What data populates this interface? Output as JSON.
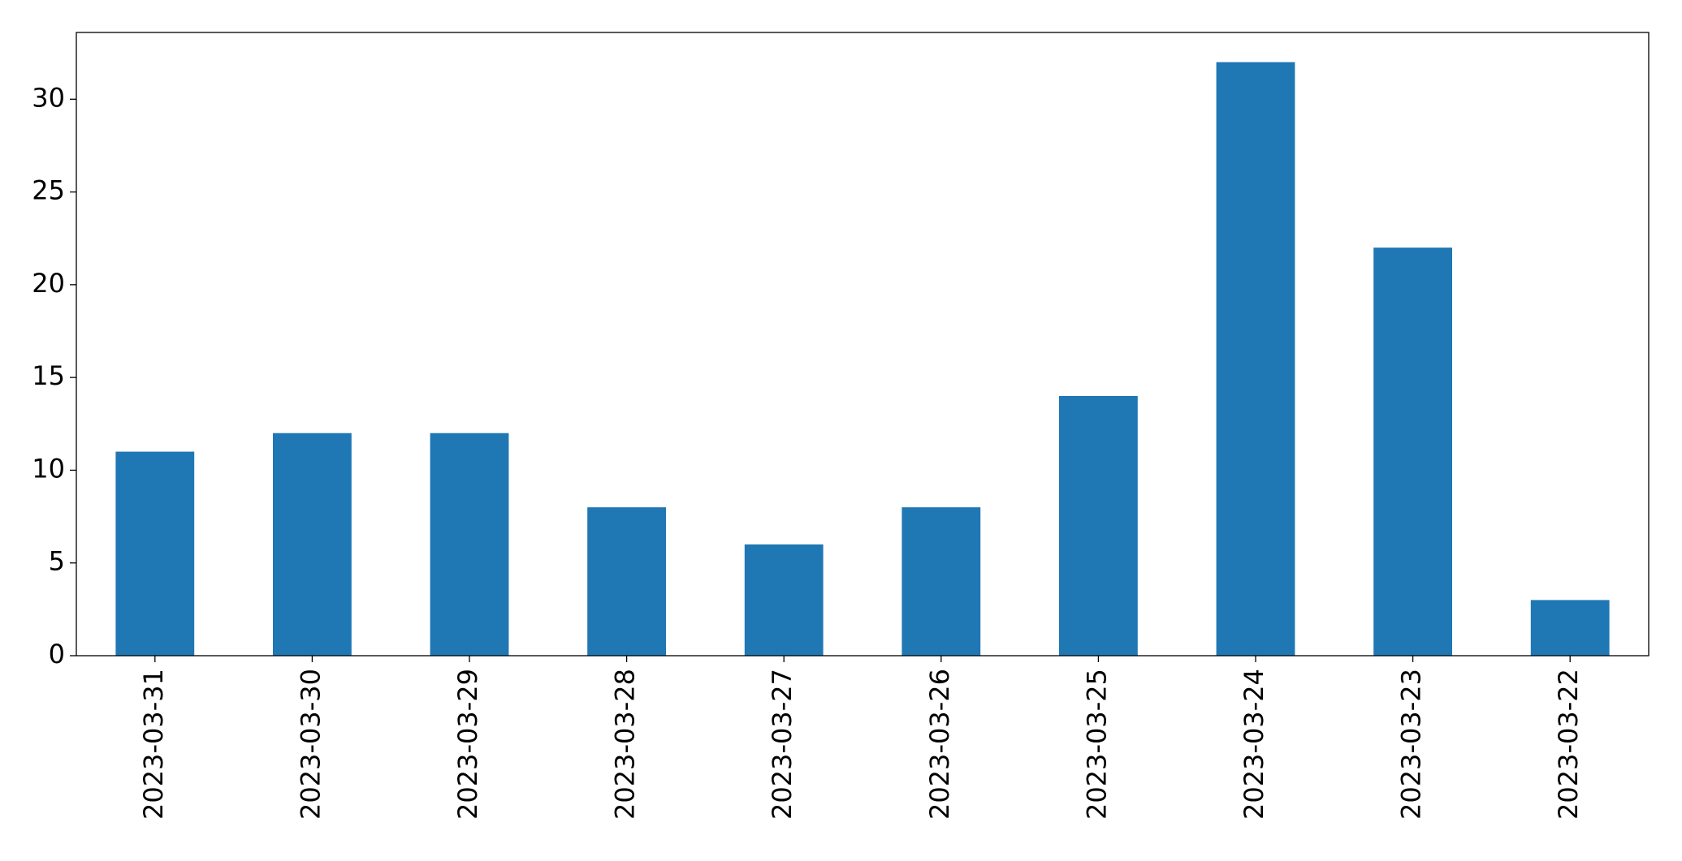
{
  "chart_data": {
    "type": "bar",
    "categories": [
      "2023-03-31",
      "2023-03-30",
      "2023-03-29",
      "2023-03-28",
      "2023-03-27",
      "2023-03-26",
      "2023-03-25",
      "2023-03-24",
      "2023-03-23",
      "2023-03-22"
    ],
    "values": [
      11,
      12,
      12,
      8,
      6,
      8,
      14,
      32,
      22,
      3
    ],
    "color": "#1f77b4",
    "ylim": [
      0,
      33.6
    ],
    "yticks": [
      0,
      5,
      10,
      15,
      20,
      25,
      30
    ],
    "grid": false
  }
}
